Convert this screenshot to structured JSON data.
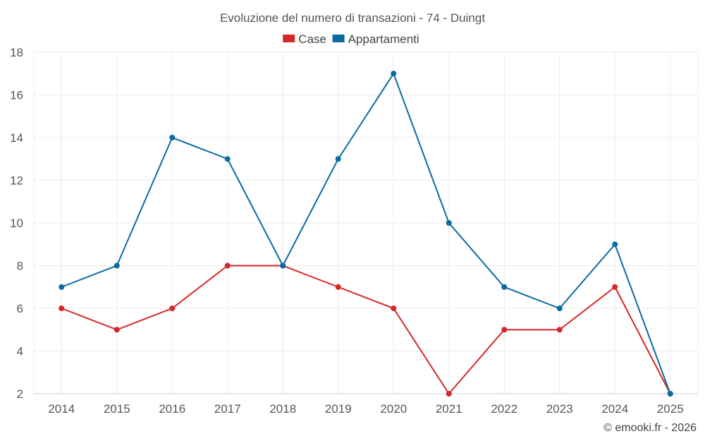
{
  "chart_data": {
    "type": "line",
    "title": "Evoluzione del numero di transazioni - 74 - Duingt",
    "categories": [
      "2014",
      "2015",
      "2016",
      "2017",
      "2018",
      "2019",
      "2020",
      "2021",
      "2022",
      "2023",
      "2024",
      "2025"
    ],
    "series": [
      {
        "name": "Case",
        "color": "#d62728",
        "values": [
          6,
          5,
          6,
          8,
          8,
          7,
          6,
          2,
          5,
          5,
          7,
          2
        ]
      },
      {
        "name": "Appartamenti",
        "color": "#0b6aa2",
        "values": [
          7,
          8,
          14,
          13,
          8,
          13,
          17,
          10,
          7,
          6,
          9,
          2
        ]
      }
    ],
    "ylim": [
      2,
      18
    ],
    "yticks": [
      2,
      4,
      6,
      8,
      10,
      12,
      14,
      16,
      18
    ],
    "grid": true,
    "legend": "top-center"
  },
  "credit": "© emooki.fr - 2026"
}
